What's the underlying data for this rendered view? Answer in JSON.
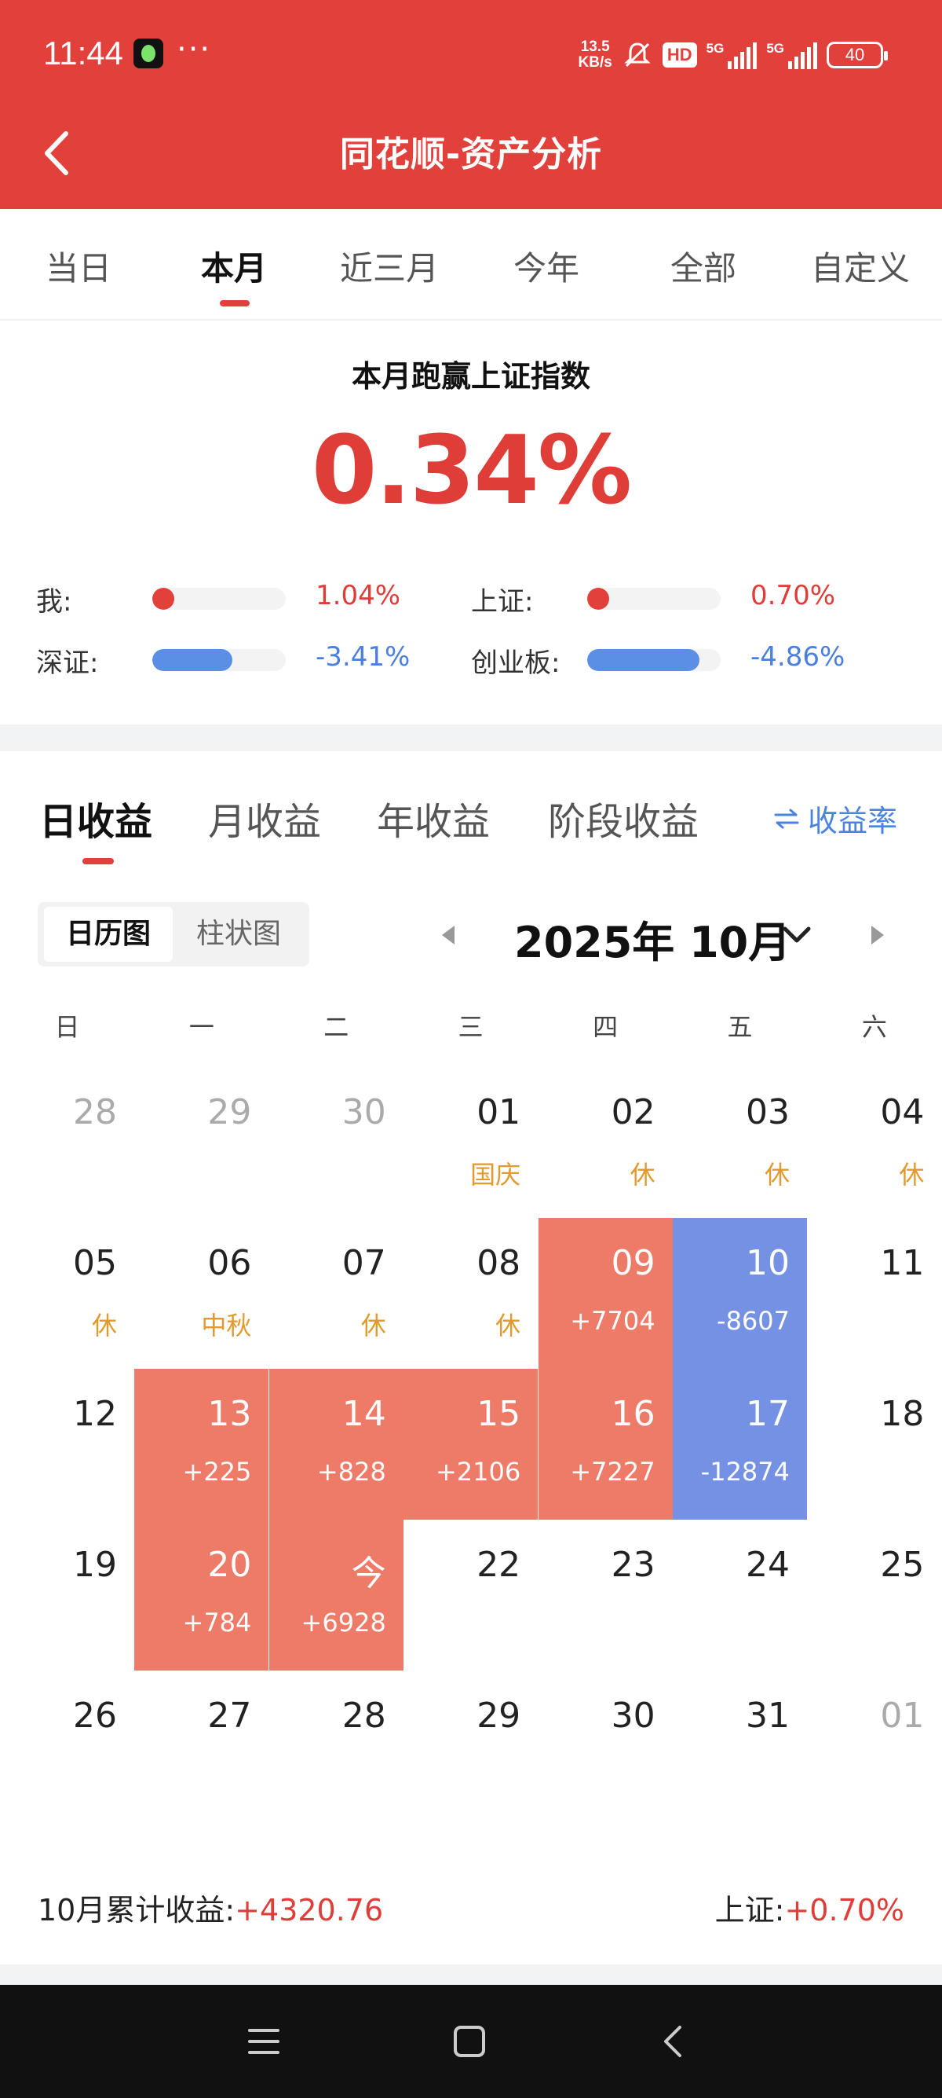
{
  "status_bar": {
    "time": "11:44",
    "more": "···",
    "speed_value": "13.5",
    "speed_unit": "KB/s",
    "hd": "HD",
    "network": "5G",
    "battery": "40"
  },
  "header": {
    "title": "同花顺-资产分析",
    "color": "#e2403b"
  },
  "range_tabs": [
    "当日",
    "本月",
    "近三月",
    "今年",
    "全部",
    "自定义"
  ],
  "active_range": "本月",
  "summary": {
    "label": "本月跑赢上证指数",
    "value": "0.34%",
    "comparisons": [
      {
        "label": "我:",
        "value": "1.04%",
        "fill": 0.1,
        "color": "#e2403b"
      },
      {
        "label": "上证:",
        "value": "0.70%",
        "fill": 0.07,
        "color": "#e2403b"
      },
      {
        "label": "深证:",
        "value": "-3.41%",
        "fill": 0.6,
        "color": "#5b8fe6"
      },
      {
        "label": "创业板:",
        "value": "-4.86%",
        "fill": 0.84,
        "color": "#5b8fe6"
      }
    ]
  },
  "profit_tabs": [
    "日收益",
    "月收益",
    "年收益",
    "阶段收益"
  ],
  "active_profit_tab": "日收益",
  "rate_toggle": "收益率",
  "view_switch": [
    "日历图",
    "柱状图"
  ],
  "active_view": "日历图",
  "month_label": "2025年 10月",
  "weekdays": [
    "日",
    "一",
    "二",
    "三",
    "四",
    "五",
    "六"
  ],
  "calendar": [
    [
      {
        "d": "28",
        "t": "other"
      },
      {
        "d": "29",
        "t": "other"
      },
      {
        "d": "30",
        "t": "other"
      },
      {
        "d": "01",
        "s": "国庆",
        "t": "holiday"
      },
      {
        "d": "02",
        "s": "休",
        "t": "holiday"
      },
      {
        "d": "03",
        "s": "休",
        "t": "holiday"
      },
      {
        "d": "04",
        "s": "休",
        "t": "holiday"
      }
    ],
    [
      {
        "d": "05",
        "s": "休",
        "t": "holiday"
      },
      {
        "d": "06",
        "s": "中秋",
        "t": "holiday"
      },
      {
        "d": "07",
        "s": "休",
        "t": "holiday"
      },
      {
        "d": "08",
        "s": "休",
        "t": "holiday"
      },
      {
        "d": "09",
        "s": "+7704",
        "t": "gain"
      },
      {
        "d": "10",
        "s": "-8607",
        "t": "loss"
      },
      {
        "d": "11",
        "t": "normal"
      }
    ],
    [
      {
        "d": "12",
        "t": "normal"
      },
      {
        "d": "13",
        "s": "+225",
        "t": "gain"
      },
      {
        "d": "14",
        "s": "+828",
        "t": "gain"
      },
      {
        "d": "15",
        "s": "+2106",
        "t": "gain"
      },
      {
        "d": "16",
        "s": "+7227",
        "t": "gain"
      },
      {
        "d": "17",
        "s": "-12874",
        "t": "loss"
      },
      {
        "d": "18",
        "t": "normal"
      }
    ],
    [
      {
        "d": "19",
        "t": "normal"
      },
      {
        "d": "20",
        "s": "+784",
        "t": "gain"
      },
      {
        "d": "今",
        "s": "+6928",
        "t": "gain"
      },
      {
        "d": "22",
        "t": "normal"
      },
      {
        "d": "23",
        "t": "normal"
      },
      {
        "d": "24",
        "t": "normal"
      },
      {
        "d": "25",
        "t": "normal"
      }
    ],
    [
      {
        "d": "26",
        "t": "normal"
      },
      {
        "d": "27",
        "t": "normal"
      },
      {
        "d": "28",
        "t": "normal"
      },
      {
        "d": "29",
        "t": "normal"
      },
      {
        "d": "30",
        "t": "normal"
      },
      {
        "d": "31",
        "t": "normal"
      },
      {
        "d": "01",
        "t": "other"
      }
    ]
  ],
  "footer": {
    "month_total_label": "10月累计收益:",
    "month_total_value": "+4320.76",
    "index_label": "上证:",
    "index_value": "+0.70%"
  }
}
